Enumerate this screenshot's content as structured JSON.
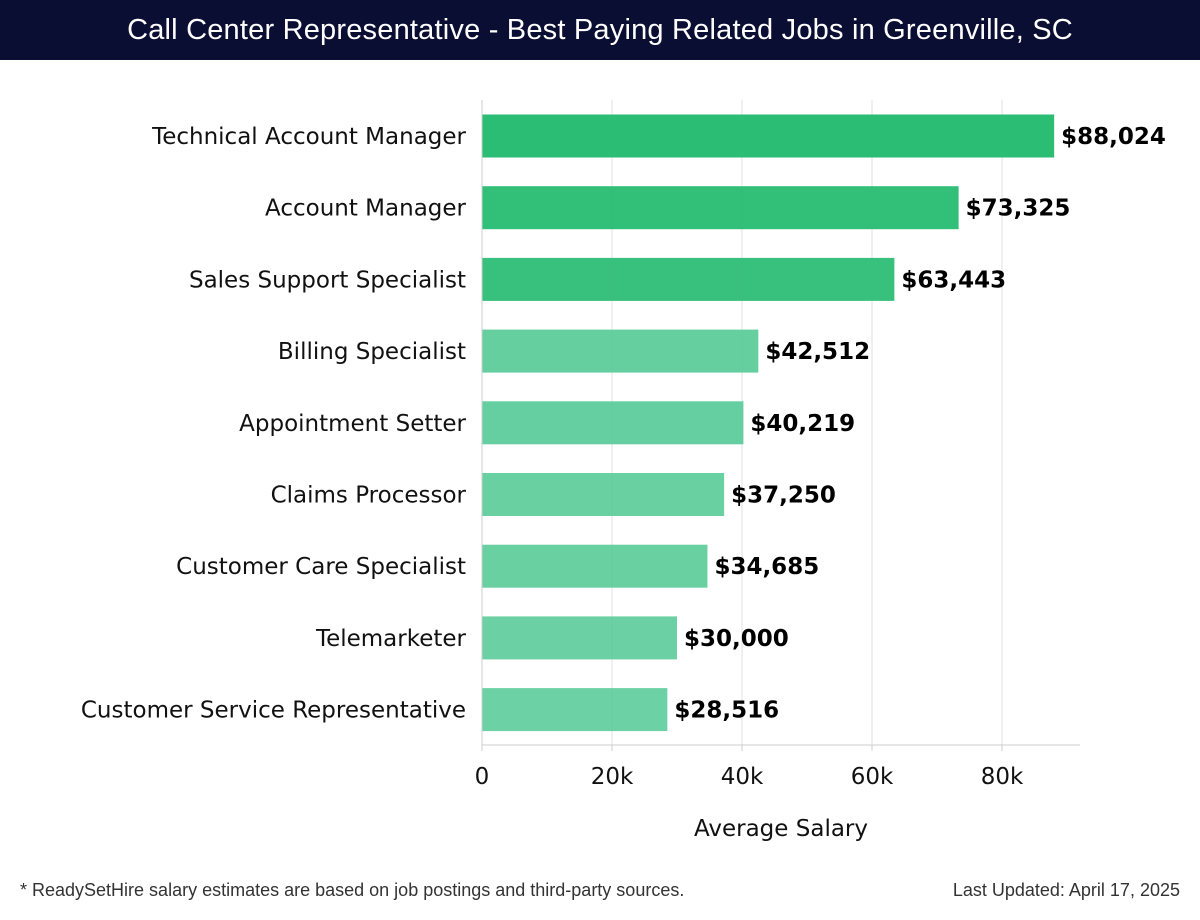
{
  "header": {
    "title": "Call Center Representative - Best Paying Related Jobs in Greenville, SC"
  },
  "chart_data": {
    "type": "bar",
    "orientation": "horizontal",
    "title": "Call Center Representative - Best Paying Related Jobs in Greenville, SC",
    "xlabel": "Average Salary",
    "ylabel": "",
    "xlim": [
      0,
      92000
    ],
    "xticks": [
      0,
      20000,
      40000,
      60000,
      80000
    ],
    "xtick_labels": [
      "0",
      "20k",
      "40k",
      "60k",
      "80k"
    ],
    "grid": true,
    "categories": [
      "Technical Account Manager",
      "Account Manager",
      "Sales Support Specialist",
      "Billing Specialist",
      "Appointment Setter",
      "Claims Processor",
      "Customer Care Specialist",
      "Telemarketer",
      "Customer Service Representative"
    ],
    "values": [
      88024,
      73325,
      63443,
      42512,
      40219,
      37250,
      34685,
      30000,
      28516
    ],
    "value_labels": [
      "$88,024",
      "$73,325",
      "$63,443",
      "$42,512",
      "$40,219",
      "$37,250",
      "$34,685",
      "$30,000",
      "$28,516"
    ],
    "colors": {
      "bar_strong": "#2bbd73",
      "bar_light": "#52c994",
      "grid": "#e2e2e2",
      "axis": "#cccccc",
      "text": "#111111"
    }
  },
  "footer": {
    "note": "* ReadySetHire salary estimates are based on job postings and third-party sources.",
    "updated": "Last Updated: April 17, 2025"
  }
}
